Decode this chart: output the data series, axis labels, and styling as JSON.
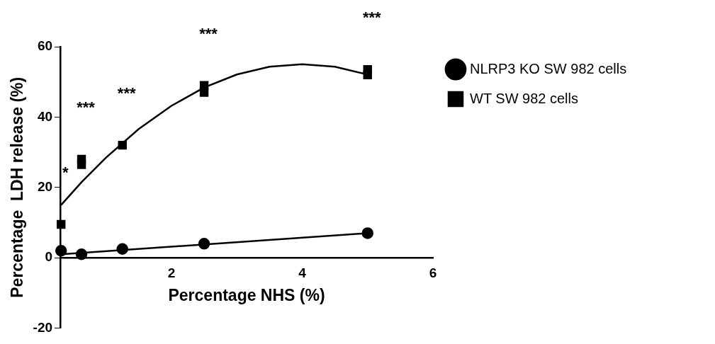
{
  "chart_data": {
    "type": "scatter",
    "xlabel": "Percentage NHS (%)",
    "ylabel": "Percentage  LDH release (%)",
    "xlim": [
      0.3,
      6
    ],
    "xticks": [
      2,
      4,
      6
    ],
    "ylim": [
      -20,
      60
    ],
    "yticks": [
      -20,
      0,
      20,
      40,
      60
    ],
    "grid": false,
    "legend": "right",
    "series": [
      {
        "name": "NLRP3 KO SW 982 cells",
        "marker": "circle",
        "color": "#000000",
        "x": [
          0.3125,
          0.625,
          1.25,
          2.5,
          5
        ],
        "values": [
          2,
          1,
          2.5,
          4,
          7
        ]
      },
      {
        "name": "WT SW 982 cells",
        "marker": "square",
        "color": "#000000",
        "x": [
          0.3125,
          0.625,
          0.625,
          1.25,
          2.5,
          2.5,
          5,
          5
        ],
        "values": [
          9.5,
          26.5,
          28,
          32,
          47,
          49,
          52,
          53.5
        ]
      },
      {
        "type": "line",
        "marker": "none",
        "color": "#000000",
        "x": [
          0.3125,
          5
        ],
        "values": [
          1,
          7
        ]
      },
      {
        "type": "line",
        "marker": "none",
        "color": "#000000",
        "x": [
          0.3125,
          0.625,
          1,
          1.5,
          2,
          2.5,
          3,
          3.5,
          4,
          4.5,
          5
        ],
        "values": [
          15,
          21.5,
          28.5,
          36.6,
          43.2,
          48.4,
          52.1,
          54.3,
          55,
          54.3,
          52.1
        ]
      }
    ],
    "annotations": [
      {
        "text": "*",
        "x": 0.3125,
        "y": 9.5
      },
      {
        "text": "***",
        "x": 0.625,
        "y": 28
      },
      {
        "text": "***",
        "x": 1.25,
        "y": 32
      },
      {
        "text": "***",
        "x": 2.5,
        "y": 49
      },
      {
        "text": "***",
        "x": 5,
        "y": 53.5
      }
    ]
  }
}
